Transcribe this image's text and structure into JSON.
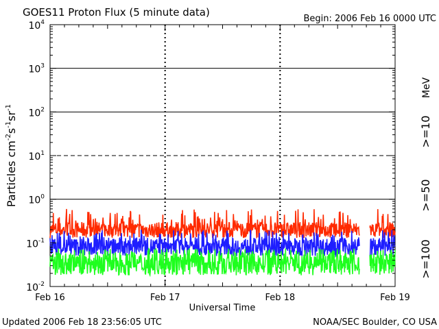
{
  "chart_data": {
    "type": "line",
    "title": "GOES11 Proton Flux (5 minute data)",
    "begin_label": "Begin: 2006 Feb 16 0000 UTC",
    "xlabel": "Universal Time",
    "ylabel_main": "Particles cm",
    "ylabel_sup1": "-2",
    "ylabel_mid1": "s",
    "ylabel_sup2": "-1",
    "ylabel_mid2": "sr",
    "ylabel_sup3": "-1",
    "y_scale": "log",
    "ylim": [
      0.01,
      10000
    ],
    "y_ticks": [
      {
        "base": "10",
        "exp": "-2",
        "value": 0.01
      },
      {
        "base": "10",
        "exp": "-1",
        "value": 0.1
      },
      {
        "base": "10",
        "exp": "0",
        "value": 1
      },
      {
        "base": "10",
        "exp": "1",
        "value": 10
      },
      {
        "base": "10",
        "exp": "2",
        "value": 100
      },
      {
        "base": "10",
        "exp": "3",
        "value": 1000
      },
      {
        "base": "10",
        "exp": "4",
        "value": 10000
      }
    ],
    "x_ticks": [
      "Feb 16",
      "Feb 17",
      "Feb 18",
      "Feb 19"
    ],
    "xlim_days": [
      0,
      3
    ],
    "solid_gridlines": [
      1,
      100,
      1000
    ],
    "dashed_gridlines": [
      10
    ],
    "series": [
      {
        "name": ">=10",
        "color": "#ff2a00",
        "typical_low": 0.13,
        "typical_high": 0.3,
        "spike_max": 0.6
      },
      {
        "name": ">=50",
        "color": "#1e1eff",
        "typical_low": 0.05,
        "typical_high": 0.13,
        "spike_max": 0.2
      },
      {
        "name": ">=100",
        "color": "#1eff1e",
        "typical_low": 0.018,
        "typical_high": 0.06,
        "spike_max": 0.075
      }
    ],
    "data_gap_days": [
      2.69,
      2.78
    ],
    "legend_unit": "MeV",
    "legend_placement": "right"
  },
  "footer": {
    "updated": "Updated 2006 Feb 18 23:56:05 UTC",
    "source": "NOAA/SEC Boulder, CO USA"
  }
}
